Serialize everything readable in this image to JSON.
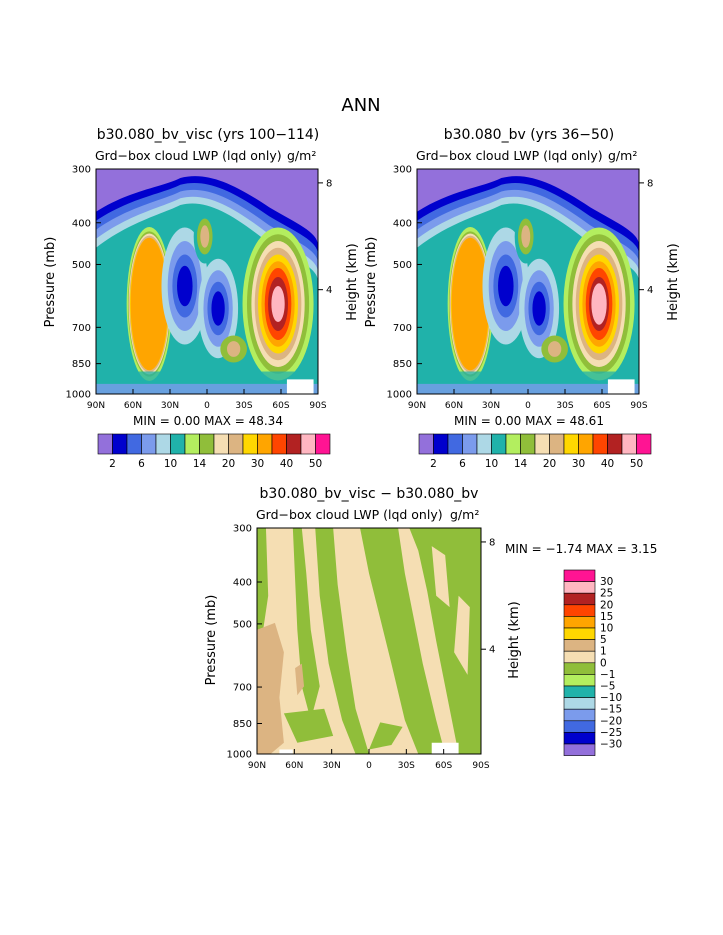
{
  "figure_title": "ANN",
  "chart_data": [
    {
      "type": "heatmap",
      "title": "b30.080_bv_visc (yrs 100−114)",
      "subtitle": "Grd−box cloud LWP (lqd only)",
      "units": "g/m²",
      "xlabel": "",
      "ylabel": "Pressure (mb)",
      "y2label": "Height (km)",
      "xticks": [
        "90N",
        "60N",
        "30N",
        "0",
        "30S",
        "60S",
        "90S"
      ],
      "x_values": [
        90,
        60,
        30,
        0,
        -30,
        -60,
        -90
      ],
      "yticks": [
        "300",
        "400",
        "500",
        "700",
        "850",
        "1000"
      ],
      "y_values": [
        300,
        400,
        500,
        700,
        850,
        1000
      ],
      "ylim": [
        1000,
        300
      ],
      "y2ticks": [
        "8",
        "4"
      ],
      "y2_values": [
        8,
        4
      ],
      "stats": "MIN =    0.00   MAX =   48.34",
      "min": 0.0,
      "max": 48.34,
      "levels": [
        2,
        4,
        6,
        8,
        10,
        12,
        14,
        16,
        20,
        25,
        30,
        35,
        40,
        45,
        50
      ],
      "level_labels": [
        "2",
        "6",
        "10",
        "14",
        "20",
        "30",
        "40",
        "50"
      ],
      "colors": [
        "#9370db",
        "#0000cd",
        "#4169e1",
        "#7b9bec",
        "#add8e6",
        "#20b2aa",
        "#b3ee5f",
        "#90be3a",
        "#f5deb3",
        "#dcb482",
        "#ffd700",
        "#ffa500",
        "#ff4500",
        "#b22222",
        "#ffb6c1",
        "#ff1493"
      ]
    },
    {
      "type": "heatmap",
      "title": "b30.080_bv (yrs 36−50)",
      "subtitle": "Grd−box cloud LWP (lqd only)",
      "units": "g/m²",
      "xlabel": "",
      "ylabel": "Pressure (mb)",
      "y2label": "Height (km)",
      "xticks": [
        "90N",
        "60N",
        "30N",
        "0",
        "30S",
        "60S",
        "90S"
      ],
      "x_values": [
        90,
        60,
        30,
        0,
        -30,
        -60,
        -90
      ],
      "yticks": [
        "300",
        "400",
        "500",
        "700",
        "850",
        "1000"
      ],
      "y_values": [
        300,
        400,
        500,
        700,
        850,
        1000
      ],
      "ylim": [
        1000,
        300
      ],
      "y2ticks": [
        "8",
        "4"
      ],
      "y2_values": [
        8,
        4
      ],
      "stats": "MIN =    0.00   MAX =   48.61",
      "min": 0.0,
      "max": 48.61,
      "levels": [
        2,
        4,
        6,
        8,
        10,
        12,
        14,
        16,
        20,
        25,
        30,
        35,
        40,
        45,
        50
      ],
      "level_labels": [
        "2",
        "6",
        "10",
        "14",
        "20",
        "30",
        "40",
        "50"
      ],
      "colors": [
        "#9370db",
        "#0000cd",
        "#4169e1",
        "#7b9bec",
        "#add8e6",
        "#20b2aa",
        "#b3ee5f",
        "#90be3a",
        "#f5deb3",
        "#dcb482",
        "#ffd700",
        "#ffa500",
        "#ff4500",
        "#b22222",
        "#ffb6c1",
        "#ff1493"
      ]
    },
    {
      "type": "heatmap",
      "title": "b30.080_bv_visc − b30.080_bv",
      "subtitle": "Grd−box cloud LWP (lqd only)",
      "units": "g/m²",
      "xlabel": "",
      "ylabel": "Pressure (mb)",
      "y2label": "Height (km)",
      "xticks": [
        "90N",
        "60N",
        "30N",
        "0",
        "30S",
        "60S",
        "90S"
      ],
      "x_values": [
        90,
        60,
        30,
        0,
        -30,
        -60,
        -90
      ],
      "yticks": [
        "300",
        "400",
        "500",
        "700",
        "850",
        "1000"
      ],
      "y_values": [
        300,
        400,
        500,
        700,
        850,
        1000
      ],
      "ylim": [
        1000,
        300
      ],
      "y2ticks": [
        "8",
        "4"
      ],
      "y2_values": [
        8,
        4
      ],
      "stats": "MIN =   −1.74   MAX =    3.15",
      "min": -1.74,
      "max": 3.15,
      "levels": [
        "30",
        "25",
        "20",
        "15",
        "10",
        "5",
        "1",
        "0",
        "−1",
        "−5",
        "−10",
        "−15",
        "−20",
        "−25",
        "−30"
      ],
      "colors": [
        "#ff1493",
        "#ffb6c1",
        "#b22222",
        "#ff4500",
        "#ffa500",
        "#ffd700",
        "#dcb482",
        "#f5deb3",
        "#90be3a",
        "#b3ee5f",
        "#20b2aa",
        "#add8e6",
        "#7b9bec",
        "#4169e1",
        "#0000cd",
        "#9370db"
      ]
    }
  ]
}
